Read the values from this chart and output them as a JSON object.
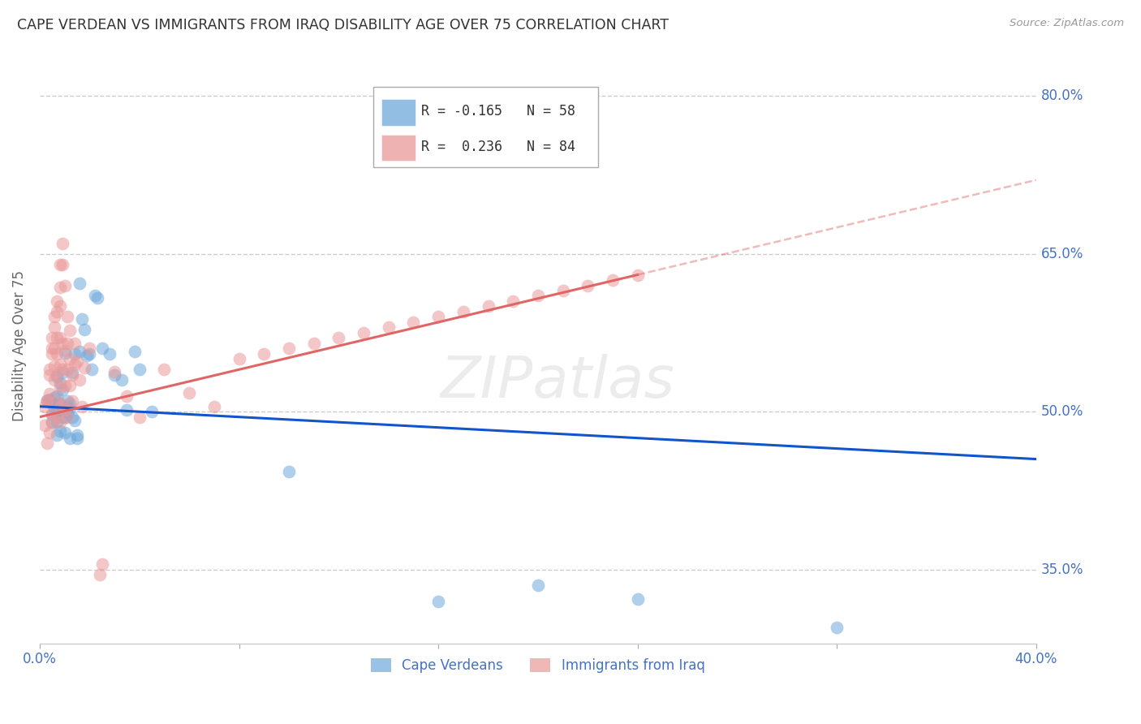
{
  "title": "CAPE VERDEAN VS IMMIGRANTS FROM IRAQ DISABILITY AGE OVER 75 CORRELATION CHART",
  "source": "Source: ZipAtlas.com",
  "ylabel": "Disability Age Over 75",
  "ytick_labels": [
    "80.0%",
    "65.0%",
    "50.0%",
    "35.0%"
  ],
  "ytick_values": [
    0.8,
    0.65,
    0.5,
    0.35
  ],
  "xlim": [
    0.0,
    0.4
  ],
  "ylim": [
    0.28,
    0.845
  ],
  "legend_blue_r": "-0.165",
  "legend_blue_n": "58",
  "legend_pink_r": "0.236",
  "legend_pink_n": "84",
  "legend_blue_label": "Cape Verdeans",
  "legend_pink_label": "Immigrants from Iraq",
  "blue_color": "#6fa8dc",
  "pink_color": "#ea9999",
  "blue_line_color": "#1155cc",
  "pink_line_color": "#e06666",
  "grid_color": "#cccccc",
  "right_label_color": "#4472c4",
  "watermark": "ZIPatlas",
  "blue_scatter": [
    [
      0.003,
      0.511
    ],
    [
      0.004,
      0.51
    ],
    [
      0.004,
      0.512
    ],
    [
      0.005,
      0.49
    ],
    [
      0.005,
      0.508
    ],
    [
      0.005,
      0.497
    ],
    [
      0.006,
      0.505
    ],
    [
      0.006,
      0.513
    ],
    [
      0.006,
      0.503
    ],
    [
      0.007,
      0.49
    ],
    [
      0.007,
      0.498
    ],
    [
      0.007,
      0.533
    ],
    [
      0.007,
      0.515
    ],
    [
      0.007,
      0.478
    ],
    [
      0.008,
      0.507
    ],
    [
      0.008,
      0.499
    ],
    [
      0.008,
      0.482
    ],
    [
      0.008,
      0.527
    ],
    [
      0.009,
      0.521
    ],
    [
      0.009,
      0.495
    ],
    [
      0.009,
      0.537
    ],
    [
      0.009,
      0.502
    ],
    [
      0.01,
      0.48
    ],
    [
      0.01,
      0.556
    ],
    [
      0.01,
      0.5
    ],
    [
      0.01,
      0.495
    ],
    [
      0.011,
      0.51
    ],
    [
      0.011,
      0.505
    ],
    [
      0.011,
      0.498
    ],
    [
      0.012,
      0.503
    ],
    [
      0.012,
      0.508
    ],
    [
      0.012,
      0.475
    ],
    [
      0.013,
      0.537
    ],
    [
      0.013,
      0.495
    ],
    [
      0.014,
      0.555
    ],
    [
      0.014,
      0.492
    ],
    [
      0.015,
      0.475
    ],
    [
      0.015,
      0.478
    ],
    [
      0.016,
      0.622
    ],
    [
      0.016,
      0.557
    ],
    [
      0.017,
      0.588
    ],
    [
      0.018,
      0.578
    ],
    [
      0.019,
      0.553
    ],
    [
      0.02,
      0.555
    ],
    [
      0.021,
      0.54
    ],
    [
      0.022,
      0.61
    ],
    [
      0.023,
      0.608
    ],
    [
      0.025,
      0.56
    ],
    [
      0.028,
      0.555
    ],
    [
      0.03,
      0.535
    ],
    [
      0.033,
      0.53
    ],
    [
      0.035,
      0.502
    ],
    [
      0.038,
      0.557
    ],
    [
      0.04,
      0.54
    ],
    [
      0.045,
      0.5
    ],
    [
      0.1,
      0.443
    ],
    [
      0.16,
      0.32
    ],
    [
      0.2,
      0.335
    ],
    [
      0.24,
      0.322
    ],
    [
      0.32,
      0.295
    ]
  ],
  "pink_scatter": [
    [
      0.002,
      0.487
    ],
    [
      0.002,
      0.505
    ],
    [
      0.003,
      0.51
    ],
    [
      0.003,
      0.47
    ],
    [
      0.003,
      0.51
    ],
    [
      0.004,
      0.48
    ],
    [
      0.004,
      0.535
    ],
    [
      0.004,
      0.54
    ],
    [
      0.004,
      0.517
    ],
    [
      0.005,
      0.555
    ],
    [
      0.005,
      0.56
    ],
    [
      0.005,
      0.57
    ],
    [
      0.005,
      0.498
    ],
    [
      0.005,
      0.49
    ],
    [
      0.006,
      0.59
    ],
    [
      0.006,
      0.58
    ],
    [
      0.006,
      0.56
    ],
    [
      0.006,
      0.543
    ],
    [
      0.006,
      0.53
    ],
    [
      0.007,
      0.605
    ],
    [
      0.007,
      0.595
    ],
    [
      0.007,
      0.57
    ],
    [
      0.007,
      0.555
    ],
    [
      0.007,
      0.535
    ],
    [
      0.007,
      0.51
    ],
    [
      0.007,
      0.495
    ],
    [
      0.008,
      0.64
    ],
    [
      0.008,
      0.618
    ],
    [
      0.008,
      0.6
    ],
    [
      0.008,
      0.57
    ],
    [
      0.008,
      0.545
    ],
    [
      0.008,
      0.523
    ],
    [
      0.008,
      0.505
    ],
    [
      0.008,
      0.49
    ],
    [
      0.009,
      0.66
    ],
    [
      0.009,
      0.64
    ],
    [
      0.009,
      0.565
    ],
    [
      0.009,
      0.54
    ],
    [
      0.009,
      0.507
    ],
    [
      0.01,
      0.62
    ],
    [
      0.01,
      0.558
    ],
    [
      0.01,
      0.525
    ],
    [
      0.01,
      0.502
    ],
    [
      0.011,
      0.59
    ],
    [
      0.011,
      0.565
    ],
    [
      0.011,
      0.54
    ],
    [
      0.011,
      0.495
    ],
    [
      0.012,
      0.577
    ],
    [
      0.012,
      0.55
    ],
    [
      0.012,
      0.525
    ],
    [
      0.013,
      0.535
    ],
    [
      0.013,
      0.51
    ],
    [
      0.014,
      0.565
    ],
    [
      0.014,
      0.545
    ],
    [
      0.015,
      0.548
    ],
    [
      0.016,
      0.53
    ],
    [
      0.017,
      0.505
    ],
    [
      0.018,
      0.542
    ],
    [
      0.02,
      0.56
    ],
    [
      0.024,
      0.345
    ],
    [
      0.025,
      0.355
    ],
    [
      0.03,
      0.538
    ],
    [
      0.035,
      0.515
    ],
    [
      0.04,
      0.495
    ],
    [
      0.05,
      0.54
    ],
    [
      0.06,
      0.518
    ],
    [
      0.07,
      0.505
    ],
    [
      0.08,
      0.55
    ],
    [
      0.09,
      0.555
    ],
    [
      0.1,
      0.56
    ],
    [
      0.11,
      0.565
    ],
    [
      0.12,
      0.57
    ],
    [
      0.13,
      0.575
    ],
    [
      0.14,
      0.58
    ],
    [
      0.15,
      0.585
    ],
    [
      0.16,
      0.59
    ],
    [
      0.17,
      0.595
    ],
    [
      0.18,
      0.6
    ],
    [
      0.19,
      0.605
    ],
    [
      0.2,
      0.61
    ],
    [
      0.21,
      0.615
    ],
    [
      0.22,
      0.62
    ],
    [
      0.23,
      0.625
    ],
    [
      0.24,
      0.63
    ]
  ]
}
